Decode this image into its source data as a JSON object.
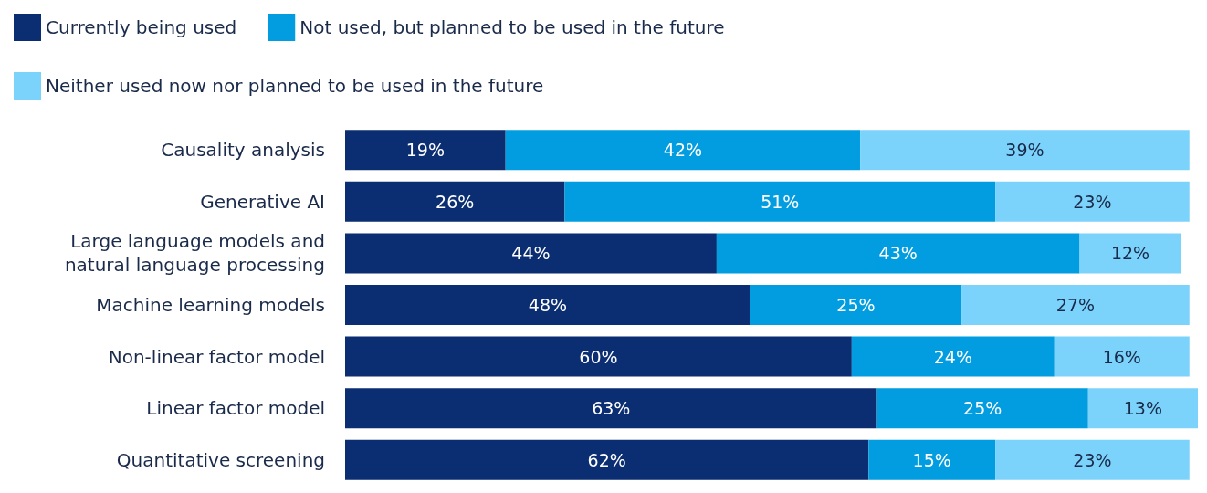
{
  "chart_data": {
    "type": "bar",
    "orientation": "horizontal",
    "stacked": true,
    "legend": "top left",
    "grid": false,
    "tick_labels": "y",
    "categories": [
      "Causality analysis",
      "Generative AI",
      "Large language models and natural language processing",
      "Machine learning models",
      "Non-linear factor model",
      "Linear factor model",
      "Quantitative screening"
    ],
    "series": [
      {
        "name": "Currently being used",
        "color": "#0b2d72",
        "values": [
          19,
          26,
          44,
          48,
          60,
          63,
          62
        ],
        "value_labels": [
          "19%",
          "26%",
          "44%",
          "48%",
          "60%",
          "63%",
          "62%"
        ]
      },
      {
        "name": "Not used, but planned to be used in the future",
        "color": "#019de0",
        "values": [
          42,
          51,
          43,
          25,
          24,
          25,
          15
        ],
        "value_labels": [
          "42%",
          "51%",
          "43%",
          "25%",
          "24%",
          "25%",
          "15%"
        ]
      },
      {
        "name": "Neither used now nor planned to be used in the future",
        "color": "#7bd3fb",
        "values": [
          39,
          23,
          12,
          27,
          16,
          13,
          23
        ],
        "value_labels": [
          "39%",
          "23%",
          "12%",
          "27%",
          "16%",
          "13%",
          "23%"
        ]
      }
    ]
  }
}
